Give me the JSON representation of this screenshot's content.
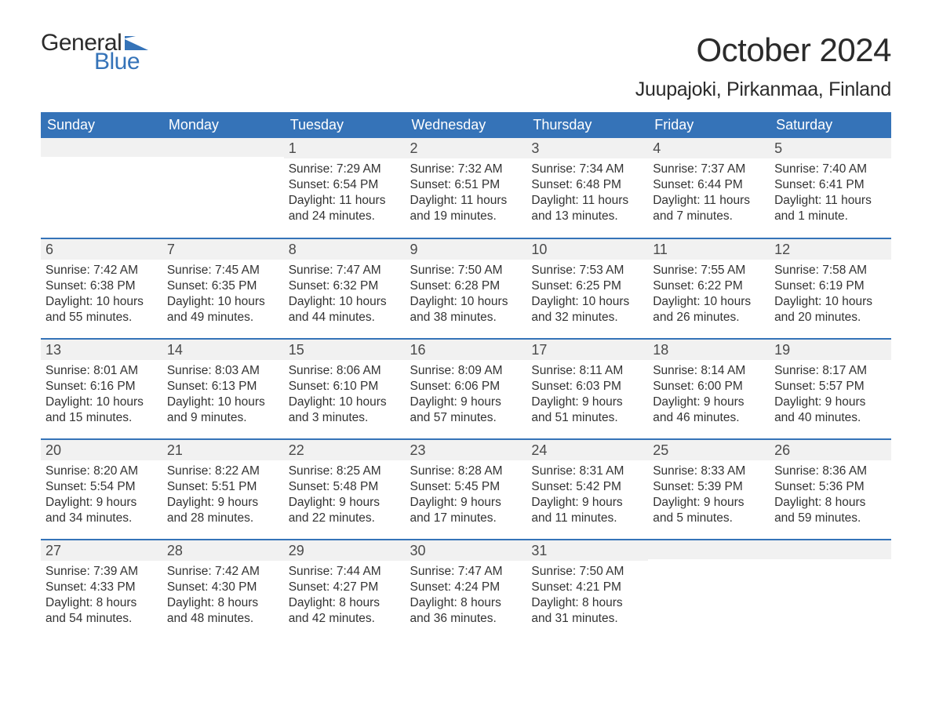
{
  "branding": {
    "logo_word1": "General",
    "logo_word2": "Blue",
    "logo_word1_color": "#2b2b2b",
    "logo_word2_color": "#3573b8",
    "flag_color": "#3573b8"
  },
  "header": {
    "title": "October 2024",
    "location": "Juupajoki, Pirkanmaa, Finland"
  },
  "calendar": {
    "type": "table",
    "columns": [
      "Sunday",
      "Monday",
      "Tuesday",
      "Wednesday",
      "Thursday",
      "Friday",
      "Saturday"
    ],
    "header_bg": "#3573b8",
    "header_text_color": "#ffffff",
    "row_border_color": "#3573b8",
    "daynum_bg": "#f1f1f1",
    "daynum_color": "#4a4a4a",
    "body_text_color": "#333333",
    "background_color": "#ffffff",
    "header_fontsize": 18,
    "daynum_fontsize": 18,
    "body_fontsize": 15.5,
    "weeks": [
      [
        {
          "day": "",
          "sunrise": "",
          "sunset": "",
          "daylight": ""
        },
        {
          "day": "",
          "sunrise": "",
          "sunset": "",
          "daylight": ""
        },
        {
          "day": "1",
          "sunrise": "Sunrise: 7:29 AM",
          "sunset": "Sunset: 6:54 PM",
          "daylight": "Daylight: 11 hours and 24 minutes."
        },
        {
          "day": "2",
          "sunrise": "Sunrise: 7:32 AM",
          "sunset": "Sunset: 6:51 PM",
          "daylight": "Daylight: 11 hours and 19 minutes."
        },
        {
          "day": "3",
          "sunrise": "Sunrise: 7:34 AM",
          "sunset": "Sunset: 6:48 PM",
          "daylight": "Daylight: 11 hours and 13 minutes."
        },
        {
          "day": "4",
          "sunrise": "Sunrise: 7:37 AM",
          "sunset": "Sunset: 6:44 PM",
          "daylight": "Daylight: 11 hours and 7 minutes."
        },
        {
          "day": "5",
          "sunrise": "Sunrise: 7:40 AM",
          "sunset": "Sunset: 6:41 PM",
          "daylight": "Daylight: 11 hours and 1 minute."
        }
      ],
      [
        {
          "day": "6",
          "sunrise": "Sunrise: 7:42 AM",
          "sunset": "Sunset: 6:38 PM",
          "daylight": "Daylight: 10 hours and 55 minutes."
        },
        {
          "day": "7",
          "sunrise": "Sunrise: 7:45 AM",
          "sunset": "Sunset: 6:35 PM",
          "daylight": "Daylight: 10 hours and 49 minutes."
        },
        {
          "day": "8",
          "sunrise": "Sunrise: 7:47 AM",
          "sunset": "Sunset: 6:32 PM",
          "daylight": "Daylight: 10 hours and 44 minutes."
        },
        {
          "day": "9",
          "sunrise": "Sunrise: 7:50 AM",
          "sunset": "Sunset: 6:28 PM",
          "daylight": "Daylight: 10 hours and 38 minutes."
        },
        {
          "day": "10",
          "sunrise": "Sunrise: 7:53 AM",
          "sunset": "Sunset: 6:25 PM",
          "daylight": "Daylight: 10 hours and 32 minutes."
        },
        {
          "day": "11",
          "sunrise": "Sunrise: 7:55 AM",
          "sunset": "Sunset: 6:22 PM",
          "daylight": "Daylight: 10 hours and 26 minutes."
        },
        {
          "day": "12",
          "sunrise": "Sunrise: 7:58 AM",
          "sunset": "Sunset: 6:19 PM",
          "daylight": "Daylight: 10 hours and 20 minutes."
        }
      ],
      [
        {
          "day": "13",
          "sunrise": "Sunrise: 8:01 AM",
          "sunset": "Sunset: 6:16 PM",
          "daylight": "Daylight: 10 hours and 15 minutes."
        },
        {
          "day": "14",
          "sunrise": "Sunrise: 8:03 AM",
          "sunset": "Sunset: 6:13 PM",
          "daylight": "Daylight: 10 hours and 9 minutes."
        },
        {
          "day": "15",
          "sunrise": "Sunrise: 8:06 AM",
          "sunset": "Sunset: 6:10 PM",
          "daylight": "Daylight: 10 hours and 3 minutes."
        },
        {
          "day": "16",
          "sunrise": "Sunrise: 8:09 AM",
          "sunset": "Sunset: 6:06 PM",
          "daylight": "Daylight: 9 hours and 57 minutes."
        },
        {
          "day": "17",
          "sunrise": "Sunrise: 8:11 AM",
          "sunset": "Sunset: 6:03 PM",
          "daylight": "Daylight: 9 hours and 51 minutes."
        },
        {
          "day": "18",
          "sunrise": "Sunrise: 8:14 AM",
          "sunset": "Sunset: 6:00 PM",
          "daylight": "Daylight: 9 hours and 46 minutes."
        },
        {
          "day": "19",
          "sunrise": "Sunrise: 8:17 AM",
          "sunset": "Sunset: 5:57 PM",
          "daylight": "Daylight: 9 hours and 40 minutes."
        }
      ],
      [
        {
          "day": "20",
          "sunrise": "Sunrise: 8:20 AM",
          "sunset": "Sunset: 5:54 PM",
          "daylight": "Daylight: 9 hours and 34 minutes."
        },
        {
          "day": "21",
          "sunrise": "Sunrise: 8:22 AM",
          "sunset": "Sunset: 5:51 PM",
          "daylight": "Daylight: 9 hours and 28 minutes."
        },
        {
          "day": "22",
          "sunrise": "Sunrise: 8:25 AM",
          "sunset": "Sunset: 5:48 PM",
          "daylight": "Daylight: 9 hours and 22 minutes."
        },
        {
          "day": "23",
          "sunrise": "Sunrise: 8:28 AM",
          "sunset": "Sunset: 5:45 PM",
          "daylight": "Daylight: 9 hours and 17 minutes."
        },
        {
          "day": "24",
          "sunrise": "Sunrise: 8:31 AM",
          "sunset": "Sunset: 5:42 PM",
          "daylight": "Daylight: 9 hours and 11 minutes."
        },
        {
          "day": "25",
          "sunrise": "Sunrise: 8:33 AM",
          "sunset": "Sunset: 5:39 PM",
          "daylight": "Daylight: 9 hours and 5 minutes."
        },
        {
          "day": "26",
          "sunrise": "Sunrise: 8:36 AM",
          "sunset": "Sunset: 5:36 PM",
          "daylight": "Daylight: 8 hours and 59 minutes."
        }
      ],
      [
        {
          "day": "27",
          "sunrise": "Sunrise: 7:39 AM",
          "sunset": "Sunset: 4:33 PM",
          "daylight": "Daylight: 8 hours and 54 minutes."
        },
        {
          "day": "28",
          "sunrise": "Sunrise: 7:42 AM",
          "sunset": "Sunset: 4:30 PM",
          "daylight": "Daylight: 8 hours and 48 minutes."
        },
        {
          "day": "29",
          "sunrise": "Sunrise: 7:44 AM",
          "sunset": "Sunset: 4:27 PM",
          "daylight": "Daylight: 8 hours and 42 minutes."
        },
        {
          "day": "30",
          "sunrise": "Sunrise: 7:47 AM",
          "sunset": "Sunset: 4:24 PM",
          "daylight": "Daylight: 8 hours and 36 minutes."
        },
        {
          "day": "31",
          "sunrise": "Sunrise: 7:50 AM",
          "sunset": "Sunset: 4:21 PM",
          "daylight": "Daylight: 8 hours and 31 minutes."
        },
        {
          "day": "",
          "sunrise": "",
          "sunset": "",
          "daylight": ""
        },
        {
          "day": "",
          "sunrise": "",
          "sunset": "",
          "daylight": ""
        }
      ]
    ]
  }
}
